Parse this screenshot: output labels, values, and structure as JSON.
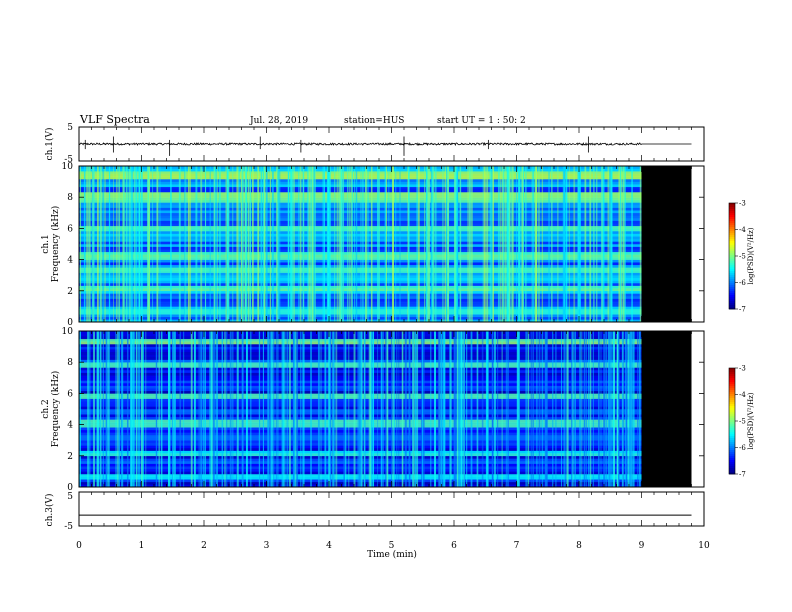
{
  "header": {
    "title": "VLF Spectra",
    "date": "Jul. 28, 2019",
    "station": "station=HUS",
    "start": "start UT =  1 : 50: 2"
  },
  "colors": {
    "colormap": [
      "#00007f",
      "#0000ff",
      "#0080ff",
      "#00ffff",
      "#80ff80",
      "#ffff00",
      "#ff8000",
      "#ff0000",
      "#800000"
    ],
    "no_data": "#000000",
    "trace": "#000000"
  },
  "chart_data": [
    {
      "type": "line",
      "name": "ch1-waveform",
      "ylabel": "ch.1(V)",
      "ylim": [
        -5,
        5
      ],
      "yticks": [
        "5",
        "-5"
      ],
      "xlim": [
        0,
        10
      ],
      "x_extent": [
        0,
        9.8
      ],
      "baseline": 0,
      "approx_noise_amplitude": 0.3
    },
    {
      "type": "heatmap",
      "name": "ch1-spectrogram",
      "ylabel": "ch.1\nFrequency (kHz)",
      "ylim": [
        0,
        10
      ],
      "yticks": [
        "0",
        "2",
        "4",
        "6",
        "8",
        "10"
      ],
      "xlim": [
        0,
        10
      ],
      "data_end_min": 9.0,
      "no_data_range_min": [
        9.0,
        9.8
      ],
      "colorbar": {
        "label": "log(PSD)(V²/Hz)",
        "range": [
          -7,
          -3
        ],
        "ticks": [
          "-3",
          "-4",
          "-5",
          "-6",
          "-7"
        ]
      },
      "bands": [
        {
          "f_khz": [
            9.3,
            9.6
          ],
          "level": -4.9
        },
        {
          "f_khz": [
            7.8,
            8.3
          ],
          "level": -5.0
        },
        {
          "f_khz": [
            5.9,
            6.1
          ],
          "level": -5.1
        },
        {
          "f_khz": [
            4.1,
            4.4
          ],
          "level": -5.2
        },
        {
          "f_khz": [
            3.3,
            3.5
          ],
          "level": -5.3
        },
        {
          "f_khz": [
            2.0,
            2.2
          ],
          "level": -5.2
        },
        {
          "f_khz": [
            0.5,
            0.7
          ],
          "level": -5.4
        }
      ],
      "background_level": -6.0
    },
    {
      "type": "heatmap",
      "name": "ch2-spectrogram",
      "ylabel": "ch.2\nFrequency (kHz)",
      "ylim": [
        0,
        10
      ],
      "yticks": [
        "0",
        "2",
        "4",
        "6",
        "8",
        "10"
      ],
      "xlim": [
        0,
        10
      ],
      "data_end_min": 9.0,
      "no_data_range_min": [
        9.0,
        9.8
      ],
      "colorbar": {
        "label": "log(PSD)(V²/Hz)",
        "range": [
          -7,
          -3
        ],
        "ticks": [
          "-3",
          "-4",
          "-5",
          "-6",
          "-7"
        ]
      },
      "bands": [
        {
          "f_khz": [
            9.3,
            9.5
          ],
          "level": -5.0
        },
        {
          "f_khz": [
            7.8,
            8.0
          ],
          "level": -5.1
        },
        {
          "f_khz": [
            5.7,
            6.0
          ],
          "level": -5.2
        },
        {
          "f_khz": [
            3.9,
            4.2
          ],
          "level": -5.2
        },
        {
          "f_khz": [
            2.0,
            2.2
          ],
          "level": -5.4
        },
        {
          "f_khz": [
            0.5,
            0.7
          ],
          "level": -5.5
        }
      ],
      "background_level": -6.4
    },
    {
      "type": "line",
      "name": "ch3-waveform",
      "ylabel": "ch.3(V)",
      "ylim": [
        -5,
        5
      ],
      "yticks": [
        "5",
        "-5"
      ],
      "xlim": [
        0,
        10
      ],
      "x_extent": [
        0,
        9.8
      ],
      "baseline": -1.8
    }
  ],
  "xaxis": {
    "label": "Time (min)",
    "range": [
      0,
      10
    ],
    "ticks": [
      "0",
      "1",
      "2",
      "3",
      "4",
      "5",
      "6",
      "7",
      "8",
      "9",
      "10"
    ]
  }
}
